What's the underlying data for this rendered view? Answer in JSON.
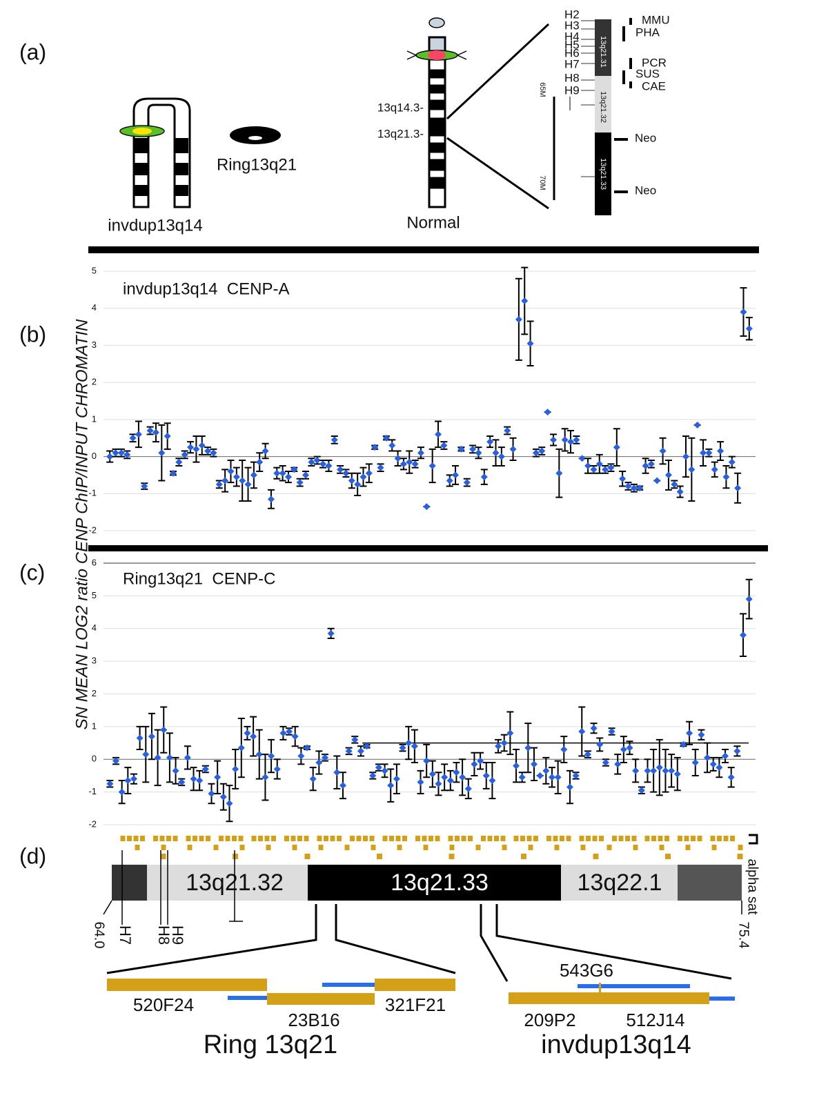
{
  "panel_labels": [
    "(a)",
    "(b)",
    "(c)",
    "(d)"
  ],
  "y_axis_label": "SN MEAN LOG2 ratio CENP ChIP/INPUT CHROMATIN",
  "panel_a": {
    "invdup_label": "invdup13q14",
    "ring_label": "Ring13q21",
    "normal_label": "Normal",
    "band_labels": [
      "13q14.3-",
      "13q21.3-"
    ],
    "markers": [
      "H2",
      "H3",
      "H4",
      "H5",
      "H6",
      "H7",
      "H8",
      "H9"
    ],
    "scale_labels": [
      "65M",
      "70M"
    ],
    "band_names": [
      "13q21.31",
      "13q21.32",
      "13q21.33"
    ],
    "assays": [
      "MMU",
      "PHA",
      "PCR",
      "SUS",
      "CAE"
    ],
    "neo": [
      "Neo",
      "Neo"
    ]
  },
  "chart_data": [
    {
      "type": "scatter",
      "title": "invdup13q14  CENP-A",
      "color": "#2860e0",
      "ylim": [
        -2,
        5
      ],
      "yticks": [
        -2,
        -1,
        0,
        1,
        2,
        3,
        4,
        5
      ],
      "grid": true,
      "values": [
        0.0,
        0.1,
        0.1,
        0.05,
        0.5,
        0.6,
        -0.8,
        0.7,
        0.65,
        0.1,
        0.55,
        -0.45,
        -0.15,
        0.05,
        0.25,
        0.2,
        0.3,
        0.15,
        0.1,
        -0.75,
        -0.65,
        -0.4,
        -0.55,
        -0.65,
        -0.75,
        -0.5,
        -0.15,
        0.15,
        -1.15,
        -0.45,
        -0.45,
        -0.55,
        -0.35,
        -0.7,
        -0.5,
        -0.15,
        -0.1,
        -0.2,
        -0.25,
        0.45,
        -0.35,
        -0.45,
        -0.65,
        -0.75,
        -0.55,
        -0.45,
        0.25,
        -0.3,
        0.5,
        0.3,
        -0.05,
        -0.2,
        -0.15,
        -0.2,
        0.1,
        -1.35,
        -0.25,
        0.6,
        0.3,
        -0.65,
        -0.5,
        0.2,
        -0.7,
        0.2,
        0.1,
        -0.55,
        0.4,
        0.1,
        0.0,
        0.7,
        0.2,
        3.7,
        4.2,
        3.05,
        0.1,
        0.15,
        1.2,
        0.45,
        -0.45,
        0.45,
        0.4,
        0.45,
        -0.05,
        -0.25,
        -0.35,
        -0.2,
        -0.35,
        -0.3,
        0.25,
        -0.6,
        -0.8,
        -0.85,
        -0.85,
        -0.25,
        -0.2,
        -0.65,
        0.15,
        -0.5,
        -0.75,
        -0.95,
        0.0,
        -0.35,
        0.85,
        0.1,
        0.1,
        -0.35,
        0.15,
        -0.55,
        -0.15,
        -0.85,
        3.9,
        3.45
      ],
      "errors": [
        0.15,
        0.1,
        0.1,
        0.1,
        0.1,
        0.35,
        0.08,
        0.1,
        0.25,
        0.75,
        0.35,
        0.05,
        0.1,
        0.1,
        0.15,
        0.35,
        0.25,
        0.1,
        0.1,
        0.1,
        0.3,
        0.3,
        0.25,
        0.55,
        0.45,
        0.35,
        0.25,
        0.2,
        0.25,
        0.15,
        0.2,
        0.15,
        0.05,
        0.1,
        0.1,
        0.1,
        0.1,
        0.1,
        0.15,
        0.1,
        0.1,
        0.1,
        0.2,
        0.3,
        0.25,
        0.25,
        0.05,
        0.1,
        0.05,
        0.15,
        0.2,
        0.15,
        0.3,
        0.1,
        0.15,
        0,
        0.45,
        0.35,
        0.1,
        0.15,
        0.25,
        0.05,
        0.1,
        0.1,
        0.15,
        0.2,
        0.15,
        0.35,
        0.25,
        0.1,
        0.3,
        1.1,
        0.9,
        0.6,
        0.1,
        0.1,
        0,
        0.15,
        0.65,
        0.3,
        0.3,
        0.1,
        0,
        0.2,
        0.1,
        0.25,
        0.1,
        0.1,
        0.5,
        0.2,
        0.1,
        0.1,
        0.05,
        0.2,
        0.1,
        0,
        0.35,
        0.4,
        0.1,
        0.15,
        0.55,
        0.85,
        0,
        0.35,
        0.1,
        0.2,
        0.25,
        0.3,
        0.15,
        0.4,
        0.65,
        0.3
      ]
    },
    {
      "type": "scatter",
      "title": "Ring13q21  CENP-C",
      "color": "#2860e0",
      "ylim": [
        -2,
        6
      ],
      "yticks": [
        -2,
        -1,
        0,
        1,
        2,
        3,
        4,
        5,
        6
      ],
      "grid": true,
      "hline": 0.5,
      "values": [
        -0.75,
        -0.05,
        -1.0,
        -0.65,
        -0.6,
        0.65,
        0.15,
        0.7,
        0.05,
        0.9,
        0.05,
        -0.35,
        -0.7,
        0.05,
        -0.6,
        -0.65,
        -0.3,
        -1.05,
        -0.55,
        -1.15,
        -1.35,
        -0.3,
        0.35,
        0.8,
        0.7,
        0.15,
        -0.55,
        0.1,
        -0.3,
        0.8,
        0.85,
        0.7,
        0.1,
        0.35,
        -0.6,
        -0.1,
        0.05,
        3.85,
        -0.4,
        -0.8,
        0.25,
        0.6,
        0.25,
        0.4,
        -0.5,
        -0.25,
        -0.35,
        -0.8,
        -0.6,
        0.35,
        0.5,
        0.4,
        -0.7,
        -0.05,
        -0.45,
        -0.75,
        -0.55,
        -0.65,
        -0.4,
        -0.55,
        -0.9,
        -0.15,
        -0.05,
        -0.5,
        -0.65,
        0.4,
        0.5,
        0.8,
        -0.2,
        -0.55,
        0.35,
        -0.15,
        -0.5,
        -0.35,
        -0.55,
        -0.55,
        0.3,
        -0.85,
        -0.5,
        0.85,
        0.15,
        0.95,
        0.45,
        -0.1,
        0.85,
        -0.15,
        0.3,
        0.35,
        -0.35,
        -0.95,
        -0.35,
        -0.35,
        -0.25,
        -0.35,
        -0.35,
        -0.45,
        0.45,
        0.8,
        -0.1,
        0.75,
        0.05,
        -0.15,
        -0.25,
        0.1,
        -0.55,
        0.25,
        3.8,
        4.9
      ],
      "errors": [
        0.1,
        0.1,
        0.35,
        0.4,
        0.15,
        0.35,
        0.85,
        0.7,
        0.85,
        0.7,
        0.75,
        0.4,
        0.1,
        0.35,
        0.35,
        0.3,
        0.1,
        0.3,
        0.5,
        0.4,
        0.55,
        0.6,
        0.9,
        0.2,
        0.6,
        0.75,
        0.7,
        0.5,
        0.3,
        0.2,
        0.1,
        0.3,
        0.25,
        0.05,
        0.35,
        0.35,
        0.1,
        0.15,
        0.5,
        0.4,
        0.1,
        0.1,
        0.15,
        0.05,
        0.1,
        0.1,
        0.2,
        0.5,
        0.45,
        0.1,
        0.5,
        0.5,
        0.35,
        0.5,
        0.4,
        0.35,
        0.4,
        0.3,
        0.3,
        0.55,
        0.3,
        0.35,
        0.25,
        0.4,
        0.55,
        0.2,
        0.25,
        0.65,
        0.5,
        0.15,
        0.75,
        0.5,
        0,
        0.4,
        0.3,
        0.5,
        0.4,
        0.5,
        0.1,
        0.75,
        0.1,
        0.15,
        0.2,
        0.1,
        0.1,
        0.3,
        0.4,
        0.2,
        0.35,
        0.1,
        0.35,
        0.65,
        0.85,
        0.65,
        0.5,
        0.5,
        0.05,
        0.35,
        0.4,
        0.15,
        0.45,
        0.2,
        0.3,
        0.2,
        0.3,
        0.15,
        0.65,
        0.6
      ]
    }
  ],
  "panel_d": {
    "bands": [
      "13q21.32",
      "13q21.33",
      "13q22.1"
    ],
    "alpha_sat": "alpha sat",
    "start": "64.0",
    "end": "75.4",
    "markers": [
      "H7",
      "H8",
      "H9"
    ],
    "clones": [
      "520F24",
      "23B16",
      "321F21",
      "543G6",
      "209P2",
      "512J14"
    ],
    "constructs": [
      "Ring 13q21",
      "invdup13q14"
    ]
  }
}
